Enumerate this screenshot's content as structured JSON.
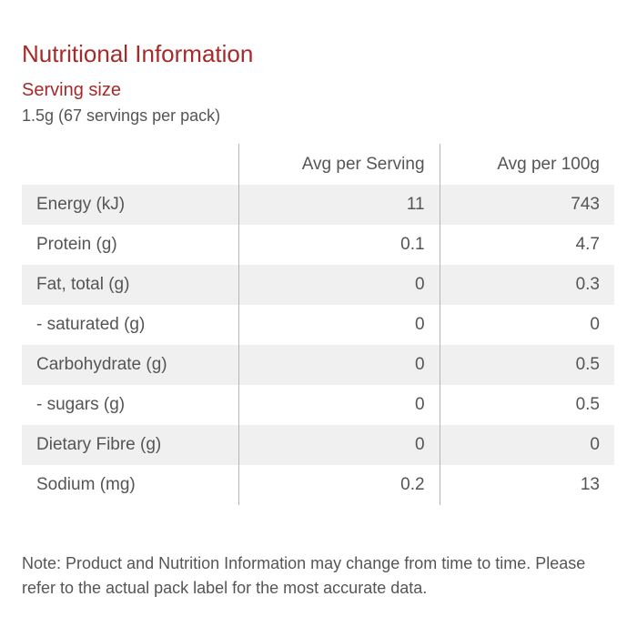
{
  "title": "Nutritional Information",
  "serving": {
    "heading": "Serving size",
    "detail": "1.5g (67 servings per pack)"
  },
  "table": {
    "headers": [
      "",
      "Avg per Serving",
      "Avg per 100g"
    ],
    "rows": [
      {
        "label": "Energy (kJ)",
        "per_serving": "11",
        "per_100g": "743"
      },
      {
        "label": "Protein (g)",
        "per_serving": "0.1",
        "per_100g": "4.7"
      },
      {
        "label": "Fat, total (g)",
        "per_serving": "0",
        "per_100g": "0.3"
      },
      {
        "label": "- saturated (g)",
        "per_serving": "0",
        "per_100g": "0"
      },
      {
        "label": "Carbohydrate (g)",
        "per_serving": "0",
        "per_100g": "0.5"
      },
      {
        "label": "- sugars (g)",
        "per_serving": "0",
        "per_100g": "0.5"
      },
      {
        "label": "Dietary Fibre (g)",
        "per_serving": "0",
        "per_100g": "0"
      },
      {
        "label": "Sodium (mg)",
        "per_serving": "0.2",
        "per_100g": "13"
      }
    ]
  },
  "note": "Note: Product and Nutrition Information may change from time to time. Please refer to the actual pack label for the most accurate data.",
  "colors": {
    "heading": "#a52a2a",
    "text": "#555555",
    "row_stripe": "#f0f0f0",
    "divider": "#b5b5b5"
  }
}
